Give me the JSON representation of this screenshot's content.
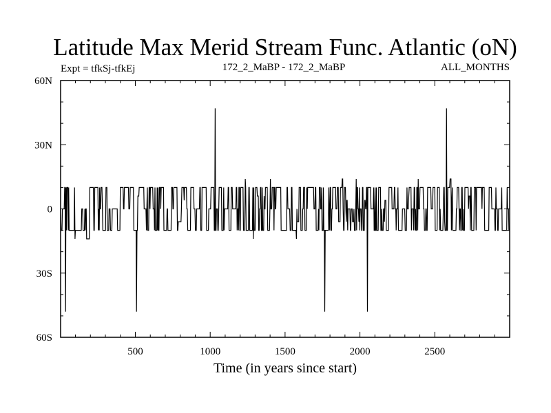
{
  "chart_data": {
    "type": "line",
    "title": "Latitude Max Merid Stream Func. Atlantic (oN)",
    "subtitle_left": "Expt = tfkSj-tfkEj",
    "subtitle_center": "172_2_MaBP - 172_2_MaBP",
    "subtitle_right": "ALL_MONTHS",
    "xlabel": "Time (in years since start)",
    "ylabel": "",
    "xlim": [
      1,
      3000
    ],
    "ylim": [
      -60,
      60
    ],
    "x_ticks": [
      500,
      1000,
      1500,
      2000,
      2500
    ],
    "x_tick_labels": [
      "500",
      "1000",
      "1500",
      "2000",
      "2500"
    ],
    "y_ticks": [
      60,
      30,
      0,
      -30,
      -60
    ],
    "y_tick_labels": [
      "60N",
      "30N",
      "0",
      "30S",
      "60S"
    ],
    "grid": false,
    "legend": "none",
    "levels": [
      -10,
      0,
      10
    ],
    "switch_probability": 0.45,
    "spikes": [
      {
        "x": 35,
        "y": -48
      },
      {
        "x": 510,
        "y": -48
      },
      {
        "x": 1035,
        "y": 47
      },
      {
        "x": 1765,
        "y": -48
      },
      {
        "x": 2050,
        "y": -48
      },
      {
        "x": 2580,
        "y": 47
      }
    ],
    "colors": {
      "line": "#000000",
      "axes": "#000000"
    }
  }
}
